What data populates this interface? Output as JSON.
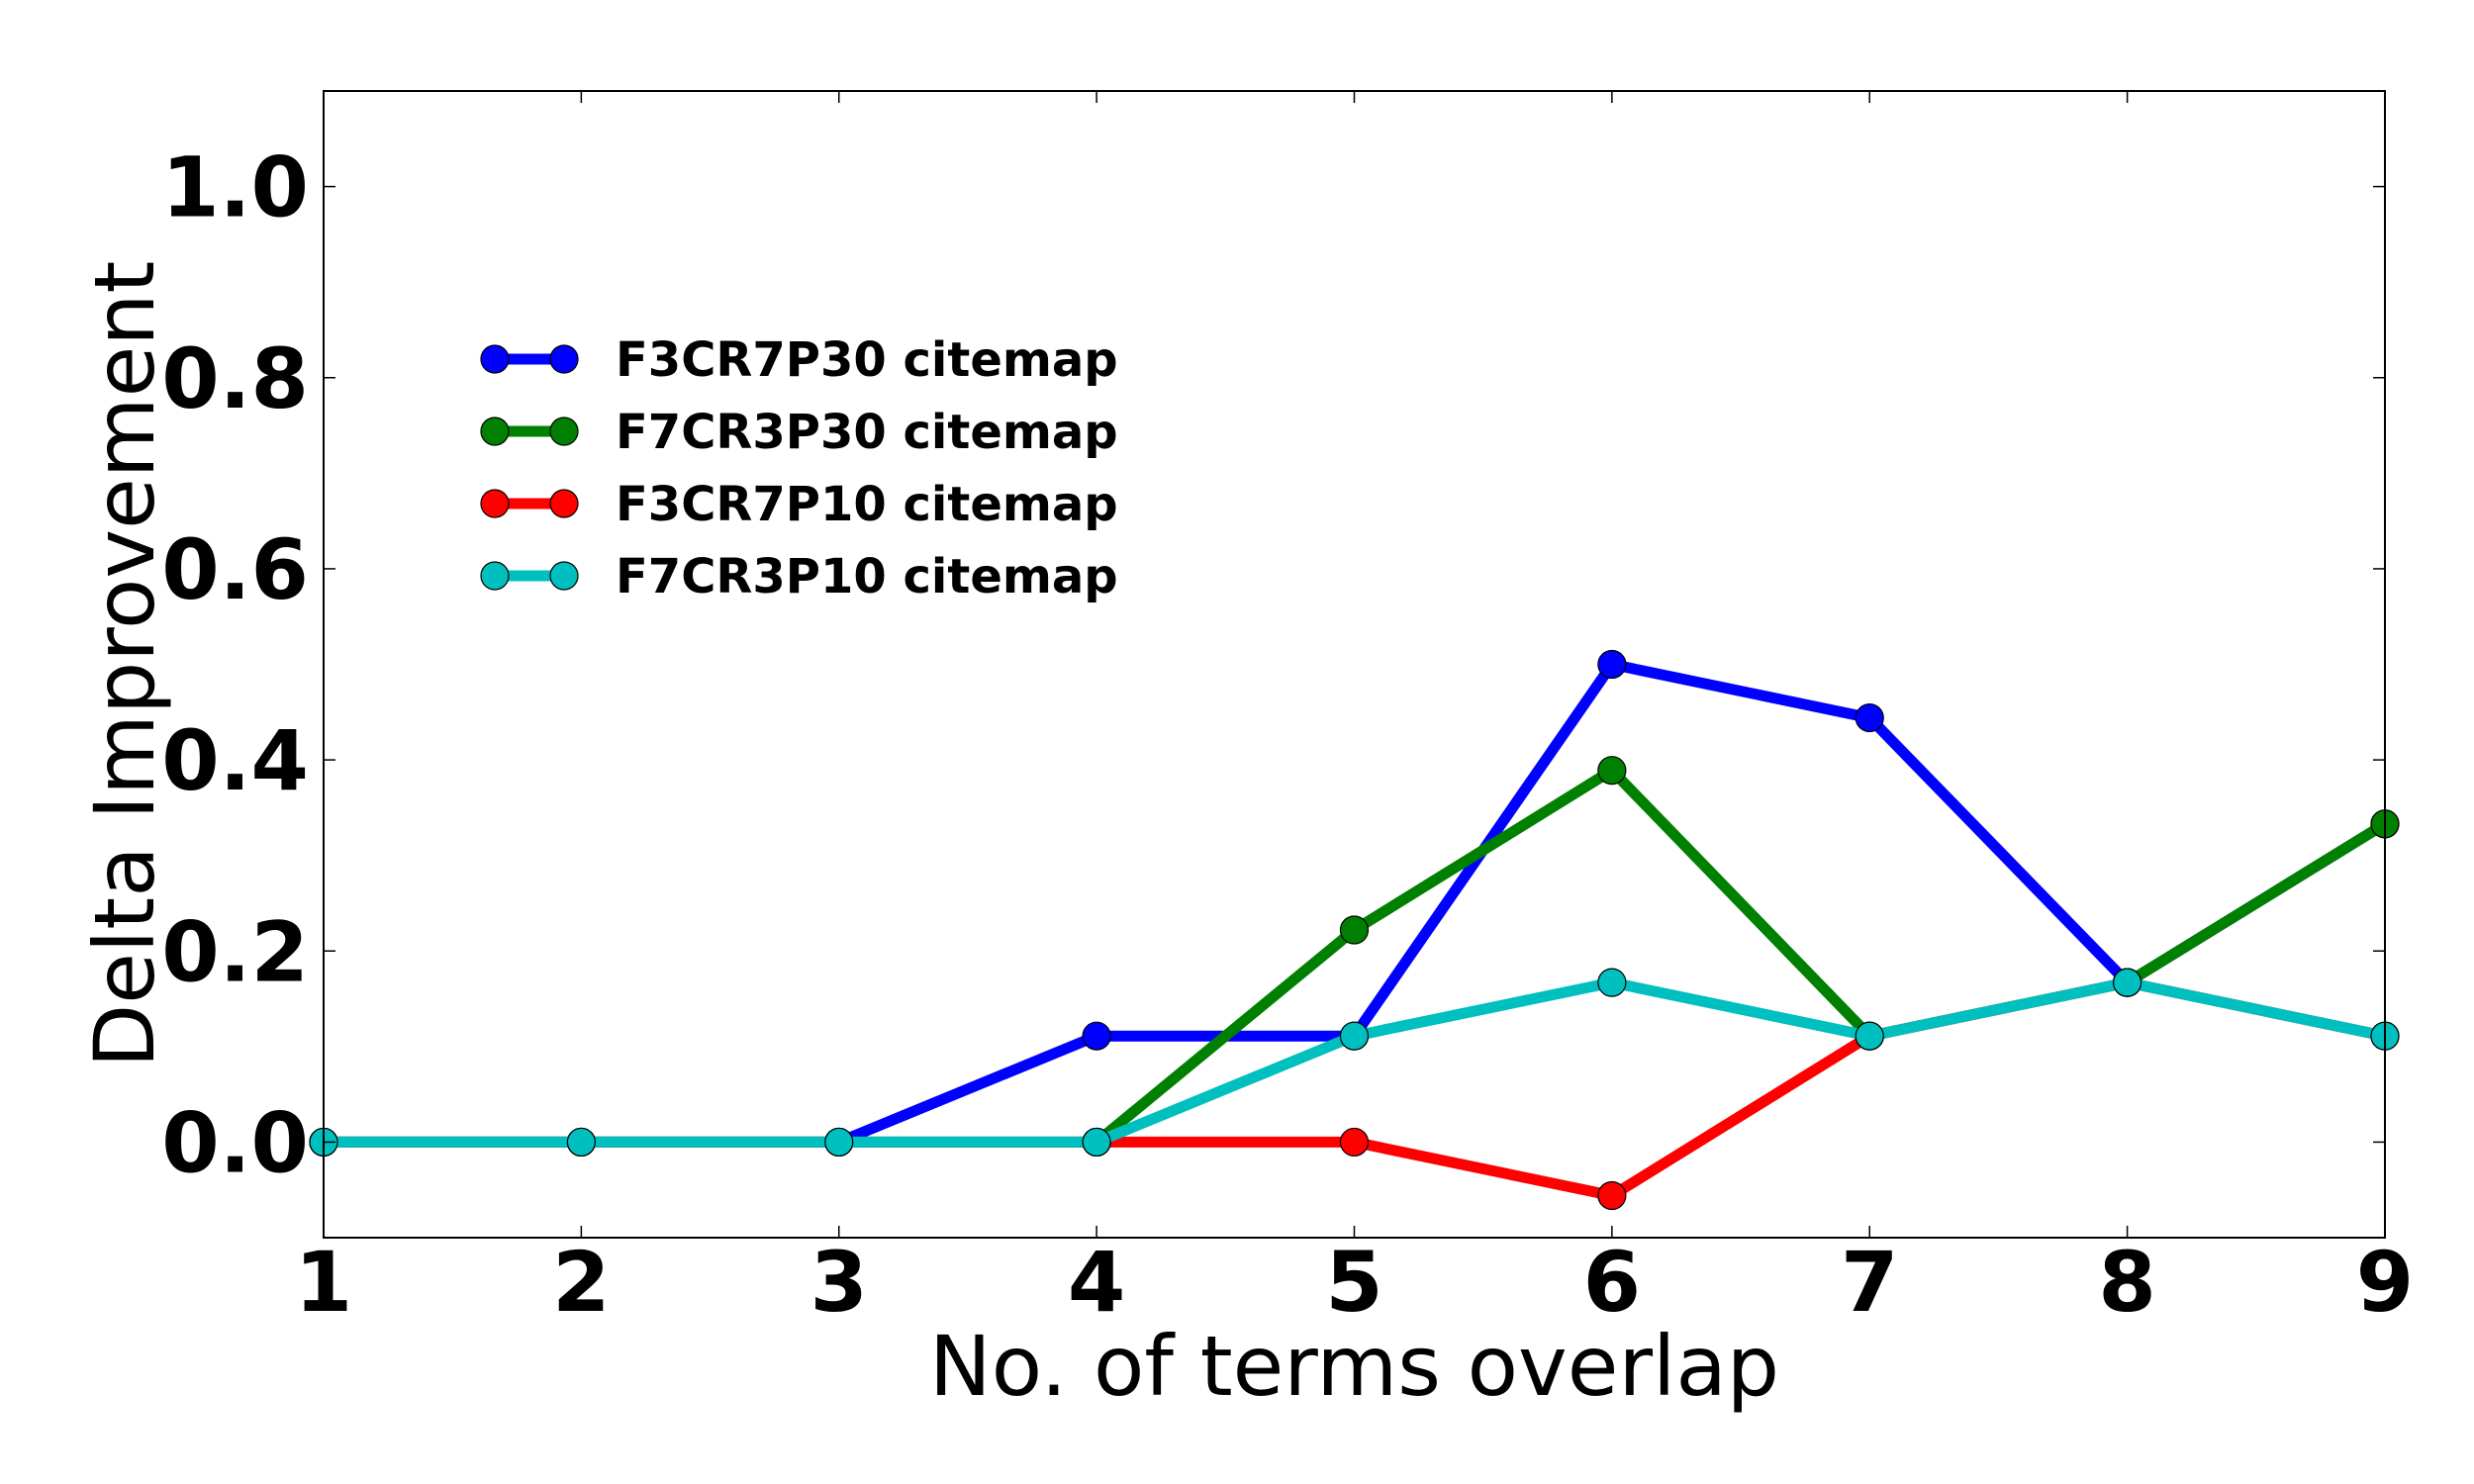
{
  "chart_data": {
    "type": "line",
    "xlabel": "No. of terms overlap",
    "ylabel": "Delta Improvement",
    "xlim": [
      1,
      9
    ],
    "ylim": [
      -0.1,
      1.1
    ],
    "xticks": [
      "1",
      "2",
      "3",
      "4",
      "5",
      "6",
      "7",
      "8",
      "9"
    ],
    "xtick_values": [
      1,
      2,
      3,
      4,
      5,
      6,
      7,
      8,
      9
    ],
    "yticks": [
      "0.0",
      "0.2",
      "0.4",
      "0.6",
      "0.8",
      "1.0"
    ],
    "ytick_values": [
      0.0,
      0.2,
      0.4,
      0.6,
      0.8,
      1.0
    ],
    "grid": false,
    "legend_position": "upper-left",
    "x": [
      1,
      2,
      3,
      4,
      5,
      6,
      7,
      8,
      9
    ],
    "series": [
      {
        "name": "F3CR7P30 citemap",
        "color": "#0000ff",
        "values": [
          0,
          0,
          0,
          0.111,
          0.111,
          0.5,
          0.444,
          0.167,
          0.333
        ]
      },
      {
        "name": "F7CR3P30 citemap",
        "color": "#008000",
        "values": [
          0,
          0,
          0,
          0,
          0.222,
          0.389,
          0.111,
          0.167,
          0.333
        ]
      },
      {
        "name": "F3CR7P10 citemap",
        "color": "#ff0000",
        "values": [
          0,
          0,
          0,
          0,
          0,
          -0.056,
          0.111,
          0.167,
          0.111
        ]
      },
      {
        "name": "F7CR3P10 citemap",
        "color": "#00bfbf",
        "values": [
          0,
          0,
          0,
          0,
          0.111,
          0.167,
          0.111,
          0.167,
          0.111
        ]
      }
    ]
  }
}
